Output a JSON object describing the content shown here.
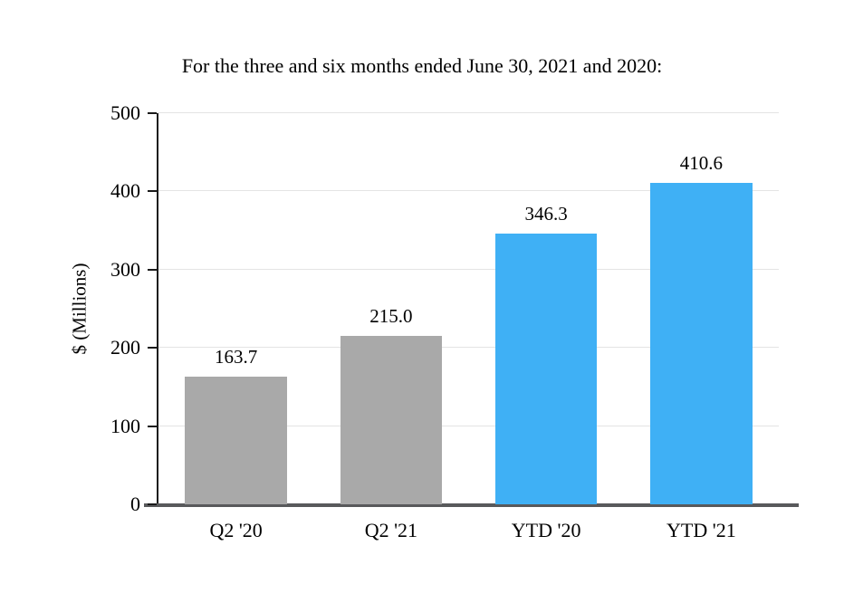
{
  "chart_data": {
    "type": "bar",
    "title": "For the three and six months ended June 30, 2021 and 2020:",
    "ylabel": "$ (Millions)",
    "xlabel": "",
    "categories": [
      "Q2 '20",
      "Q2 '21",
      "YTD '20",
      "YTD '21"
    ],
    "values": [
      163.7,
      215.0,
      346.3,
      410.6
    ],
    "value_labels": [
      "163.7",
      "215.0",
      "346.3",
      "410.6"
    ],
    "ylim": [
      0,
      500
    ],
    "yticks": [
      0,
      100,
      200,
      300,
      400,
      500
    ],
    "grid": "horizontal",
    "legend": "none",
    "bar_colors": [
      "#a9a9a9",
      "#a9a9a9",
      "#3fb0f5",
      "#3fb0f5"
    ],
    "colors": {
      "gray_bar": "#a9a9a9",
      "blue_bar": "#3fb0f5",
      "axis_left": "#1a1a1a",
      "axis_bottom": "#58595b",
      "gridline": "#e4e4e4",
      "text": "#000000",
      "background": "#ffffff"
    }
  }
}
